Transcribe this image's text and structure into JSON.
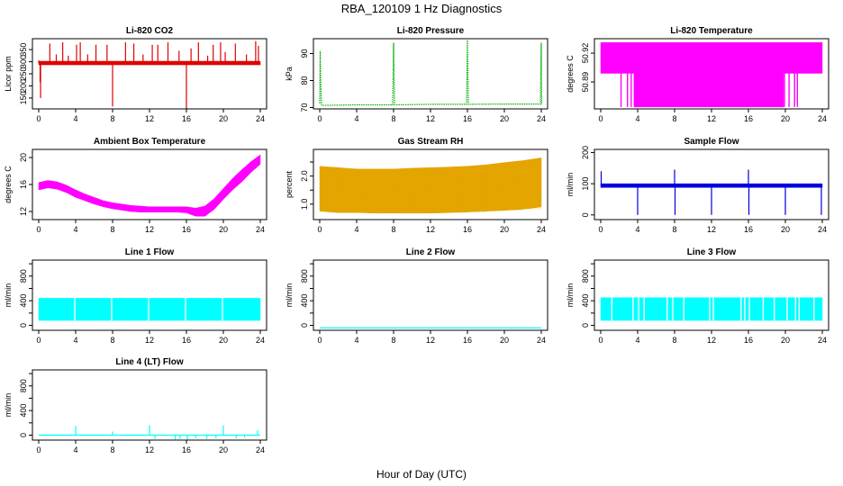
{
  "figure": {
    "title": "RBA_120109  1 Hz Diagnostics",
    "xlabel": "Hour of Day (UTC)"
  },
  "chart_data": [
    {
      "type": "line",
      "title": "Li-820 CO2",
      "ylabel": "Licor ppm",
      "color": "#e00000",
      "xlim": [
        0,
        24
      ],
      "ylim": [
        105,
        395
      ],
      "xticks": [
        0,
        4,
        8,
        12,
        16,
        20,
        24
      ],
      "yticks": [
        150,
        200,
        250,
        300,
        350
      ],
      "series": [
        {
          "render": "spikes",
          "x": [
            0,
            0.15,
            0.2,
            1.2,
            1.9,
            2.6,
            3.2,
            4.1,
            4.5,
            5.3,
            6.2,
            7.4,
            8.0,
            9.4,
            10.3,
            11.3,
            12.3,
            12.9,
            14.0,
            15.2,
            16.0,
            16.5,
            17.3,
            18.3,
            18.9,
            19.7,
            20.2,
            21.3,
            22.5,
            23.5,
            23.8
          ],
          "y": [
            305,
            215,
            150,
            375,
            330,
            380,
            325,
            370,
            380,
            330,
            370,
            370,
            115,
            380,
            375,
            330,
            370,
            370,
            380,
            345,
            105,
            355,
            380,
            325,
            370,
            380,
            340,
            375,
            330,
            385,
            365
          ],
          "base": 295
        },
        {
          "render": "band",
          "x": [
            0,
            24
          ],
          "y_low": [
            287,
            287
          ],
          "y_high": [
            302,
            302
          ]
        }
      ]
    },
    {
      "type": "line",
      "title": "Li-820 Pressure",
      "ylabel": "kPa",
      "color": "#00b000",
      "line_style": "dotted",
      "xlim": [
        0,
        24
      ],
      "ylim": [
        69.5,
        95.5
      ],
      "xticks": [
        0,
        4,
        8,
        12,
        16,
        20,
        24
      ],
      "yticks": [
        70,
        80,
        90
      ],
      "series": [
        {
          "render": "line",
          "x": [
            0,
            0.05,
            0.1,
            0.2,
            0.4,
            4,
            7.9,
            8.0,
            8.1,
            12,
            15.9,
            16.0,
            16.1,
            20,
            23.9,
            24.0,
            24.05
          ],
          "y": [
            71.5,
            91,
            80,
            71,
            70.8,
            71,
            71,
            94,
            71,
            71.2,
            71.2,
            95,
            71.2,
            71.3,
            71.3,
            94,
            71
          ]
        }
      ]
    },
    {
      "type": "area",
      "title": "Li-820 Temperature",
      "ylabel": "degrees C",
      "color": "#ff00ff",
      "xlim": [
        0,
        24
      ],
      "ylim": [
        50.862,
        50.935
      ],
      "xticks": [
        0,
        4,
        8,
        12,
        16,
        20,
        24
      ],
      "yticks": [
        50.89,
        50.92
      ],
      "ytick_labels": [
        "50.89",
        "50.92"
      ],
      "series": [
        {
          "render": "band",
          "x": [
            0,
            24
          ],
          "y_low": [
            50.899,
            50.899
          ],
          "y_high": [
            50.931,
            50.931
          ]
        },
        {
          "render": "band",
          "x": [
            3.6,
            19.8
          ],
          "y_low": [
            50.864,
            50.864
          ],
          "y_high": [
            50.899,
            50.899
          ]
        },
        {
          "render": "vlines",
          "x": [
            2.2,
            2.9,
            3.3,
            4.2,
            4.6,
            5.0,
            19.9,
            20.4,
            21.0,
            21.3
          ],
          "y_low": 50.864,
          "y_high": 50.899
        }
      ]
    },
    {
      "type": "area",
      "title": "Ambient Box Temperature",
      "ylabel": "degrees C",
      "color": "#ff00ff",
      "xlim": [
        0,
        24
      ],
      "ylim": [
        10.8,
        21.2
      ],
      "xticks": [
        0,
        4,
        8,
        12,
        16,
        20,
        24
      ],
      "yticks": [
        12,
        16,
        20
      ],
      "series": [
        {
          "render": "band",
          "x": [
            0,
            1,
            2,
            3,
            4,
            5,
            6,
            7,
            8,
            9,
            10,
            11,
            12,
            13,
            14,
            15,
            16,
            17,
            18,
            19,
            20,
            21,
            22,
            23,
            24
          ],
          "y_low": [
            15.2,
            15.5,
            15.3,
            14.8,
            14.1,
            13.6,
            13.1,
            12.7,
            12.4,
            12.2,
            12.0,
            11.9,
            11.9,
            11.9,
            11.9,
            11.9,
            11.8,
            11.3,
            11.3,
            12.3,
            13.8,
            15.2,
            16.4,
            17.8,
            19.0
          ],
          "y_high": [
            16.3,
            16.6,
            16.4,
            15.9,
            15.2,
            14.6,
            14.1,
            13.6,
            13.3,
            13.1,
            12.9,
            12.8,
            12.7,
            12.7,
            12.7,
            12.7,
            12.7,
            12.5,
            12.8,
            13.9,
            15.4,
            16.9,
            18.2,
            19.4,
            20.4
          ]
        }
      ]
    },
    {
      "type": "area",
      "title": "Gas Stream RH",
      "ylabel": "percent",
      "color": "#e8a200",
      "accent": "#c0c000",
      "xlim": [
        0,
        24
      ],
      "ylim": [
        0.45,
        2.95
      ],
      "xticks": [
        0,
        4,
        8,
        12,
        16,
        20,
        24
      ],
      "yticks": [
        1.0,
        1.5,
        2.0,
        2.5
      ],
      "ytick_labels": [
        "1.0",
        "",
        "2.0",
        ""
      ],
      "series": [
        {
          "render": "band",
          "x": [
            0,
            2,
            4,
            6,
            8,
            10,
            12,
            14,
            16,
            18,
            20,
            22,
            24
          ],
          "y_low": [
            0.75,
            0.7,
            0.7,
            0.68,
            0.68,
            0.68,
            0.68,
            0.7,
            0.72,
            0.75,
            0.78,
            0.82,
            0.9
          ],
          "y_high": [
            2.35,
            2.3,
            2.25,
            2.25,
            2.25,
            2.28,
            2.3,
            2.32,
            2.35,
            2.4,
            2.48,
            2.55,
            2.65
          ]
        }
      ]
    },
    {
      "type": "line",
      "title": "Sample Flow",
      "ylabel": "ml/min",
      "color": "#0000dd",
      "xlim": [
        0,
        24
      ],
      "ylim": [
        -15,
        210
      ],
      "xticks": [
        0,
        4,
        8,
        12,
        16,
        20,
        24
      ],
      "yticks": [
        0,
        100,
        200
      ],
      "series": [
        {
          "render": "band",
          "x": [
            0,
            24
          ],
          "y_low": [
            88,
            88
          ],
          "y_high": [
            100,
            100
          ]
        },
        {
          "render": "spikes",
          "x": [
            0.05,
            4.0,
            8.0,
            12.0,
            16.0,
            20.0,
            23.9
          ],
          "y": [
            140,
            0,
            145,
            0,
            145,
            0,
            0
          ],
          "base": 95
        },
        {
          "render": "spikes",
          "x": [
            8.05,
            16.05
          ],
          "y": [
            0,
            0
          ],
          "base": 95
        }
      ]
    },
    {
      "type": "area",
      "title": "Line 1 Flow",
      "ylabel": "ml/min",
      "color": "#00ffff",
      "xlim": [
        0,
        24
      ],
      "ylim": [
        -80,
        1060
      ],
      "xticks": [
        0,
        4,
        8,
        12,
        16,
        20,
        24
      ],
      "yticks": [
        0,
        200,
        400,
        600,
        800,
        1000
      ],
      "ytick_labels": [
        "0",
        "",
        "400",
        "",
        "800",
        ""
      ],
      "series": [
        {
          "render": "band",
          "x": [
            0,
            24
          ],
          "y_low": [
            80,
            80
          ],
          "y_high": [
            440,
            440
          ]
        },
        {
          "render": "vlines",
          "x": [
            3.9,
            7.9,
            11.9,
            15.9,
            19.9
          ],
          "y_low": 80,
          "y_high": 440,
          "color": "#ffffff"
        }
      ]
    },
    {
      "type": "line",
      "title": "Line 2 Flow",
      "ylabel": "ml/min",
      "color": "#00ffff",
      "xlim": [
        0,
        24
      ],
      "ylim": [
        -80,
        1060
      ],
      "xticks": [
        0,
        4,
        8,
        12,
        16,
        20,
        24
      ],
      "yticks": [
        0,
        200,
        400,
        600,
        800,
        1000
      ],
      "ytick_labels": [
        "0",
        "",
        "400",
        "",
        "800",
        ""
      ],
      "series": [
        {
          "render": "line",
          "x": [
            0,
            24
          ],
          "y": [
            -40,
            -40
          ]
        }
      ]
    },
    {
      "type": "area",
      "title": "Line 3 Flow",
      "ylabel": "ml/min",
      "color": "#00ffff",
      "xlim": [
        0,
        24
      ],
      "ylim": [
        -80,
        1060
      ],
      "xticks": [
        0,
        4,
        8,
        12,
        16,
        20,
        24
      ],
      "yticks": [
        0,
        200,
        400,
        600,
        800,
        1000
      ],
      "ytick_labels": [
        "0",
        "",
        "400",
        "",
        "800",
        ""
      ],
      "series": [
        {
          "render": "band",
          "x": [
            0,
            24
          ],
          "y_low": [
            80,
            80
          ],
          "y_high": [
            450,
            450
          ]
        },
        {
          "render": "vlines",
          "x": [
            1.2,
            3.5,
            4.1,
            4.7,
            7.2,
            7.8,
            9.0,
            11.8,
            12.2,
            15.2,
            15.6,
            16.1,
            17.6,
            18.8,
            20.2,
            21.1,
            21.5,
            23.1
          ],
          "y_low": 80,
          "y_high": 450,
          "color": "#ffffff"
        }
      ]
    },
    {
      "type": "line",
      "title": "Line 4 (LT) Flow",
      "ylabel": "ml/min",
      "color": "#00ffff",
      "xlim": [
        0,
        24
      ],
      "ylim": [
        -80,
        1060
      ],
      "xticks": [
        0,
        4,
        8,
        12,
        16,
        20,
        24
      ],
      "yticks": [
        0,
        200,
        400,
        600,
        800,
        1000
      ],
      "ytick_labels": [
        "0",
        "",
        "400",
        "",
        "800",
        ""
      ],
      "series": [
        {
          "render": "line",
          "x": [
            0,
            24
          ],
          "y": [
            0,
            0
          ]
        },
        {
          "render": "spikes",
          "x": [
            4.0,
            8.0,
            12.0,
            12.6,
            14.8,
            15.3,
            16.1,
            17.0,
            18.2,
            19.2,
            20.0,
            21.4,
            22.3,
            23.7
          ],
          "y": [
            150,
            60,
            160,
            -60,
            -70,
            -60,
            -70,
            -50,
            -60,
            -50,
            160,
            -50,
            -40,
            80
          ],
          "base": 0
        }
      ]
    }
  ]
}
